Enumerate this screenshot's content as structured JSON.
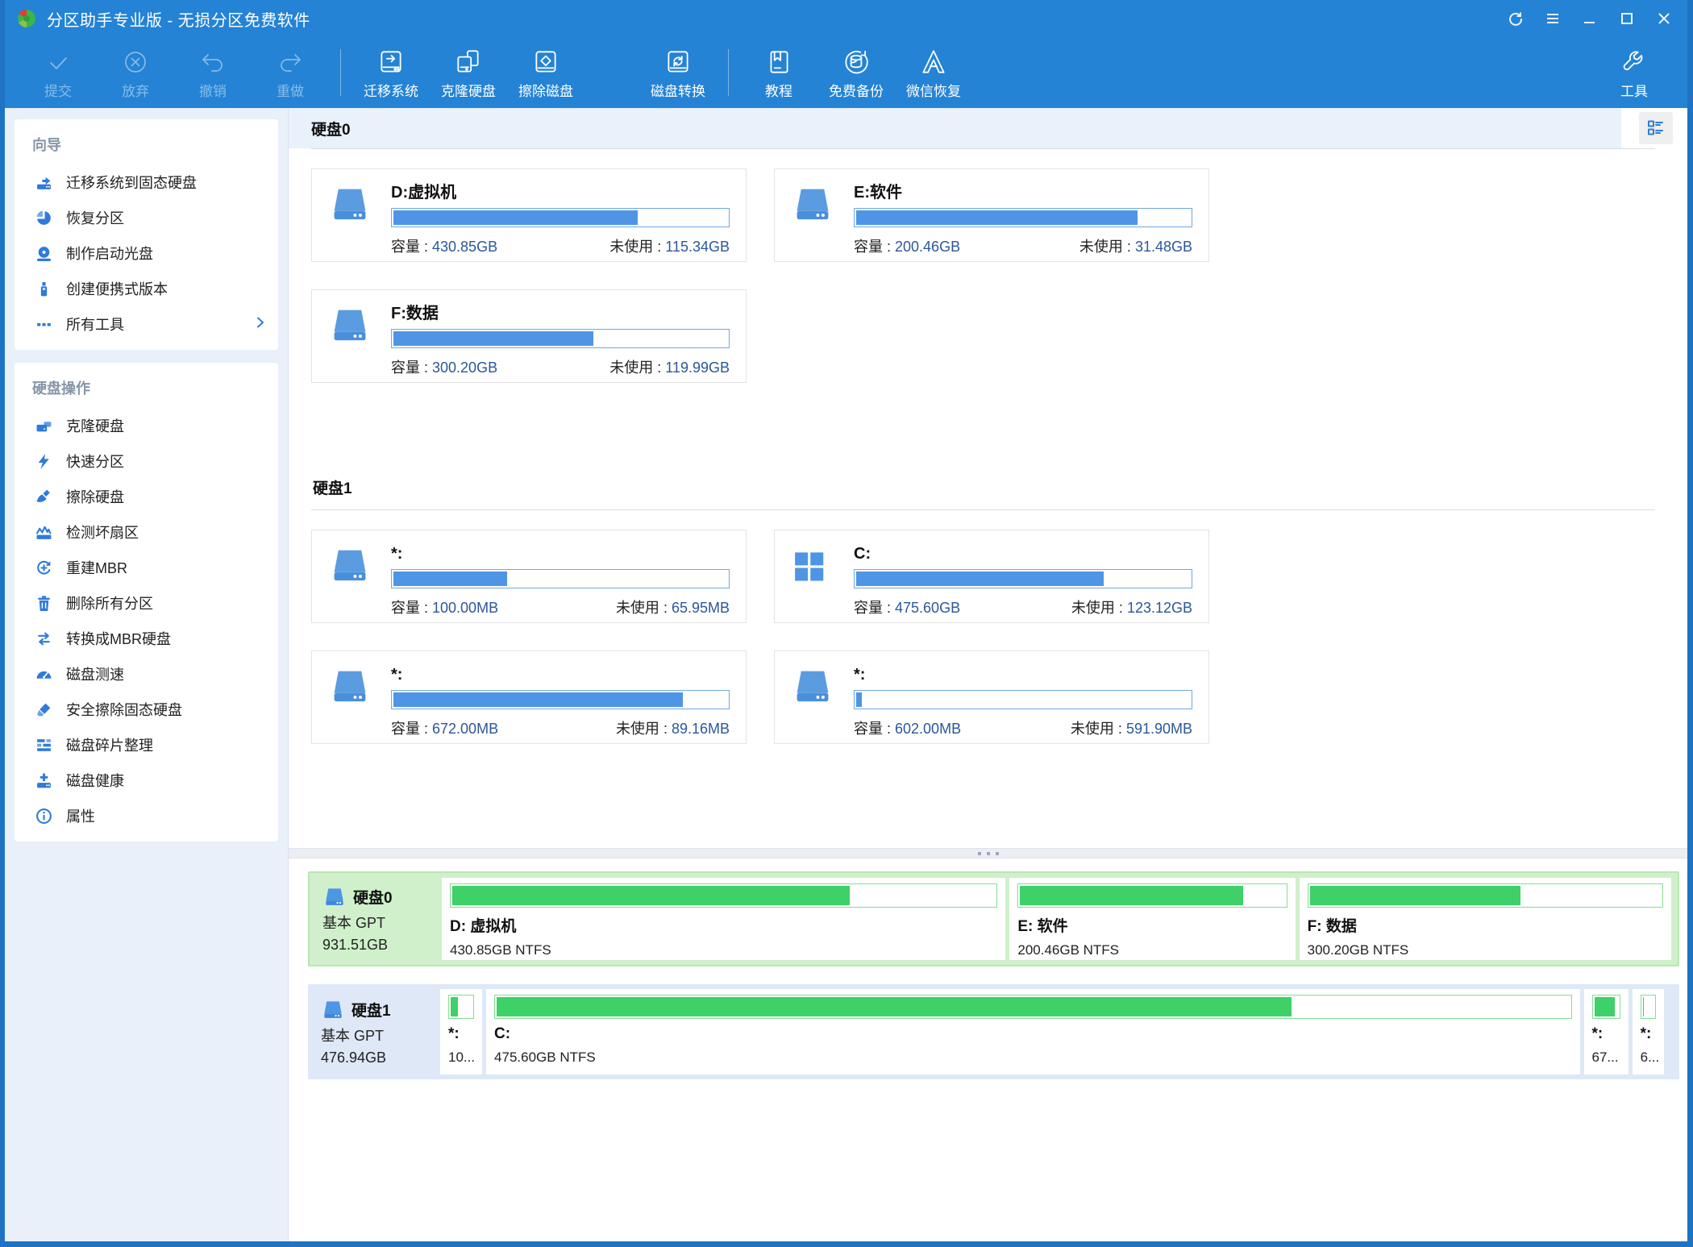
{
  "window": {
    "title": "分区助手专业版 - 无损分区免费软件"
  },
  "toolbar": {
    "items": [
      {
        "label": "提交"
      },
      {
        "label": "放弃"
      },
      {
        "label": "撤销"
      },
      {
        "label": "重做"
      },
      {
        "label": "迁移系统"
      },
      {
        "label": "克隆硬盘"
      },
      {
        "label": "擦除磁盘"
      },
      {
        "label": "磁盘转换"
      },
      {
        "label": "教程"
      },
      {
        "label": "免费备份"
      },
      {
        "label": "微信恢复"
      },
      {
        "label": "工具"
      }
    ]
  },
  "sidebar": {
    "sections": [
      {
        "title": "向导",
        "items": [
          {
            "label": "迁移系统到固态硬盘"
          },
          {
            "label": "恢复分区"
          },
          {
            "label": "制作启动光盘"
          },
          {
            "label": "创建便携式版本"
          },
          {
            "label": "所有工具"
          }
        ]
      },
      {
        "title": "硬盘操作",
        "items": [
          {
            "label": "克隆硬盘"
          },
          {
            "label": "快速分区"
          },
          {
            "label": "擦除硬盘"
          },
          {
            "label": "检测坏扇区"
          },
          {
            "label": "重建MBR"
          },
          {
            "label": "删除所有分区"
          },
          {
            "label": "转换成MBR硬盘"
          },
          {
            "label": "磁盘测速"
          },
          {
            "label": "安全擦除固态硬盘"
          },
          {
            "label": "磁盘碎片整理"
          },
          {
            "label": "磁盘健康"
          },
          {
            "label": "属性"
          }
        ]
      }
    ]
  },
  "labels": {
    "capacity": "容量 : ",
    "unused": "未使用 : "
  },
  "main": {
    "disks": [
      {
        "title": "硬盘0",
        "partitions": [
          {
            "name": "D:虚拟机",
            "capacity": "430.85GB",
            "unused": "115.34GB",
            "used_pct": 73.2
          },
          {
            "name": "E:软件",
            "capacity": "200.46GB",
            "unused": "31.48GB",
            "used_pct": 84.3
          },
          {
            "name": "F:数据",
            "capacity": "300.20GB",
            "unused": "119.99GB",
            "used_pct": 60
          }
        ]
      },
      {
        "title": "硬盘1",
        "partitions": [
          {
            "name": "*:",
            "capacity": "100.00MB",
            "unused": "65.95MB",
            "used_pct": 34
          },
          {
            "name": "C:",
            "capacity": "475.60GB",
            "unused": "123.12GB",
            "used_pct": 74.1
          },
          {
            "name": "*:",
            "capacity": "672.00MB",
            "unused": "89.16MB",
            "used_pct": 86.7
          },
          {
            "name": "*:",
            "capacity": "602.00MB",
            "unused": "591.90MB",
            "used_pct": 1.7
          }
        ]
      }
    ]
  },
  "bottom": {
    "disks": [
      {
        "name": "硬盘0",
        "type": "基本 GPT",
        "size": "931.51GB",
        "blocks": [
          {
            "label": "D: 虚拟机",
            "info": "430.85GB NTFS",
            "used_pct": 73.2,
            "width_pct": 45.8
          },
          {
            "label": "E: 软件",
            "info": "200.46GB NTFS",
            "used_pct": 84.3,
            "width_pct": 23.2
          },
          {
            "label": "F: 数据",
            "info": "300.20GB NTFS",
            "used_pct": 60,
            "width_pct": 30.2
          }
        ]
      },
      {
        "name": "硬盘1",
        "type": "基本 GPT",
        "size": "476.94GB",
        "blocks": [
          {
            "label": "*:",
            "info": "10...",
            "used_pct": 34,
            "width_pct": 3.4
          },
          {
            "label": "C:",
            "info": "475.60GB NTFS",
            "used_pct": 74.1,
            "width_pct": 88.6
          },
          {
            "label": "*:",
            "info": "67...",
            "used_pct": 86.7,
            "width_pct": 3.6
          },
          {
            "label": "*:",
            "info": "6...",
            "used_pct": 2,
            "width_pct": 2.6
          }
        ]
      }
    ]
  }
}
